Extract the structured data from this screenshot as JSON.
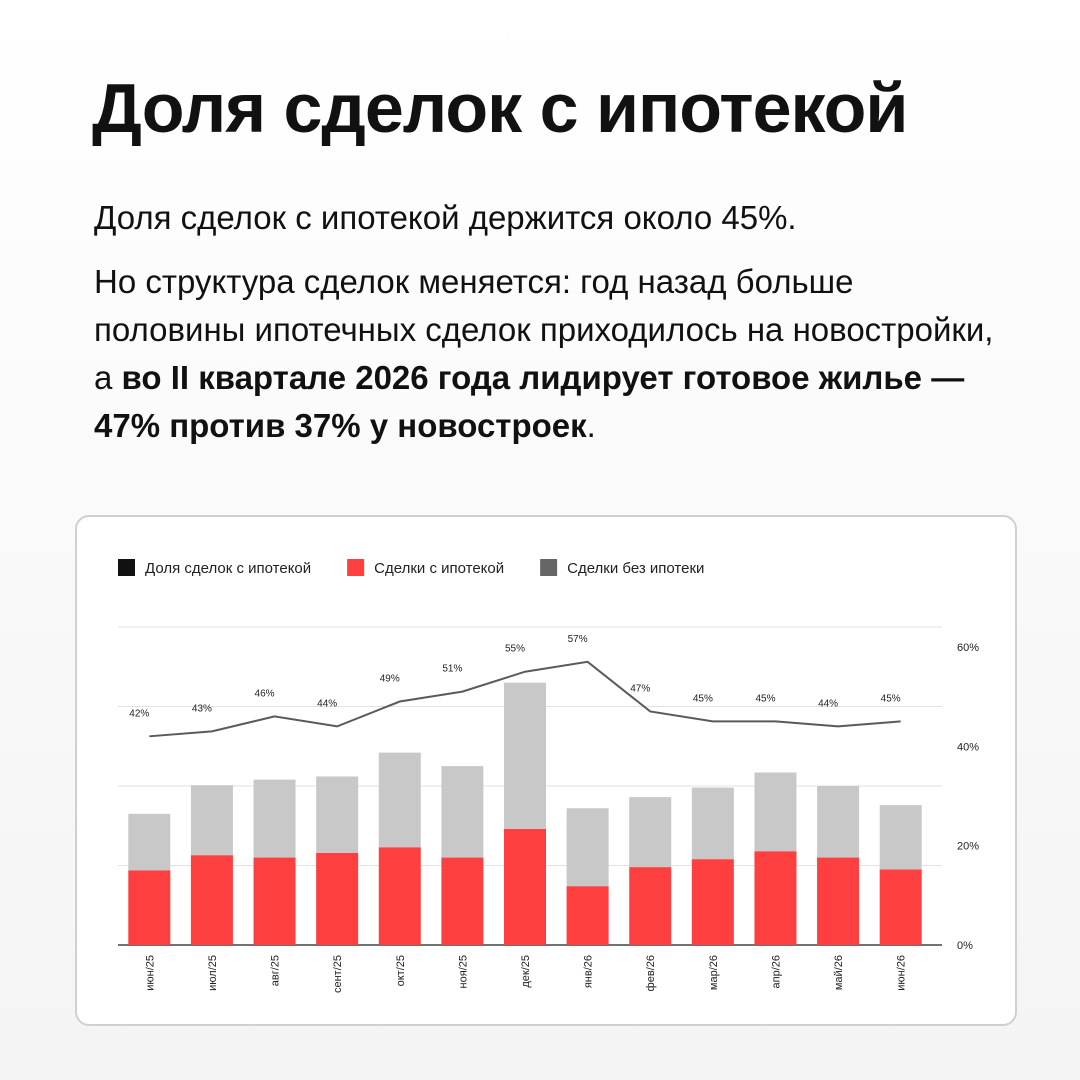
{
  "header": {
    "title": "Доля сделок с ипотекой",
    "paragraph_1": "Доля сделок с ипотекой держится около 45%.",
    "paragraph_2": [
      "Но структура сделок меняется: год назад больше половины ипотечных сделок приходилось на новостройки, а ",
      "во II квартале 2026 года лидирует готовое жилье — 47% против 37% у новостроек",
      "."
    ]
  },
  "chart_data": {
    "type": "stacked-bar-line",
    "categories": [
      "июн/25",
      "июл/25",
      "авг/25",
      "сент/25",
      "окт/25",
      "ноя/25",
      "дек/25",
      "янв/26",
      "фев/26",
      "мар/26",
      "апр/26",
      "май/26",
      "июн/26"
    ],
    "series": [
      {
        "name": "Доля сделок с ипотекой",
        "type": "line",
        "axis": "y2",
        "color": "#5a5a5a",
        "legend_color": "#111111",
        "values": [
          42,
          43,
          46,
          44,
          49,
          51,
          55,
          57,
          47,
          45,
          45,
          44,
          45
        ],
        "value_labels": [
          "42%",
          "43%",
          "46%",
          "44%",
          "49%",
          "51%",
          "55%",
          "57%",
          "47%",
          "45%",
          "45%",
          "44%",
          "45%"
        ]
      },
      {
        "name": "Сделки с ипотекой",
        "type": "bar",
        "color": "#fd3f3f",
        "legend_color": "#fd3f3f",
        "values": [
          0.94,
          1.13,
          1.1,
          1.16,
          1.23,
          1.1,
          1.46,
          0.74,
          0.98,
          1.08,
          1.18,
          1.1,
          0.95
        ]
      },
      {
        "name": "Сделки без ипотеки",
        "type": "bar",
        "color": "#c8c8c8",
        "legend_color": "#666666",
        "values": [
          0.71,
          0.88,
          0.98,
          0.96,
          1.19,
          1.15,
          1.84,
          0.98,
          0.88,
          0.9,
          0.99,
          0.9,
          0.81
        ]
      }
    ],
    "ylim": [
      0,
      4
    ],
    "yticks": [
      0,
      1,
      2,
      3,
      4
    ],
    "show_ytick_labels": false,
    "y2lim": [
      0,
      64
    ],
    "y2ticks": [
      {
        "value": 0,
        "label": "0%"
      },
      {
        "value": 20,
        "label": "20%"
      },
      {
        "value": 40,
        "label": "40%"
      },
      {
        "value": 60,
        "label": "60%"
      }
    ],
    "grid": true
  }
}
